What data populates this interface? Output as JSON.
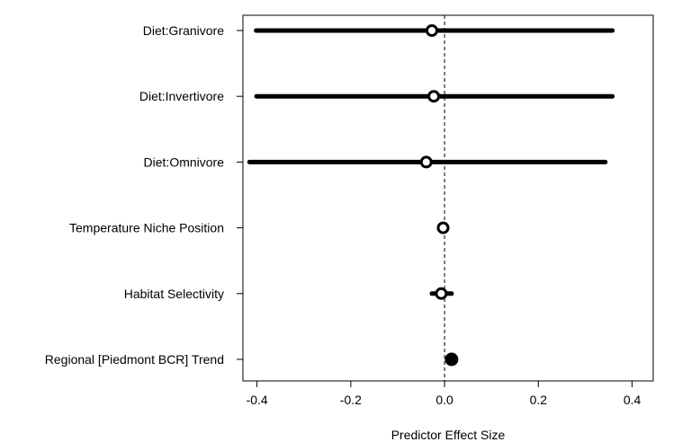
{
  "chart_data": {
    "type": "scatter",
    "subtype": "forest-plot",
    "title": "",
    "xlabel": "Predictor Effect Size",
    "ylabel": "",
    "xlim": [
      -0.43,
      0.445
    ],
    "xticks": [
      -0.4,
      -0.2,
      0.0,
      0.2,
      0.4
    ],
    "xtick_labels": [
      "-0.4",
      "-0.2",
      "0.0",
      "0.2",
      "0.4"
    ],
    "reference_line_x": 0,
    "grid": false,
    "legend": "none",
    "categories": [
      "Diet:Granivore",
      "Diet:Invertivore",
      "Diet:Omnivore",
      "Temperature Niche Position",
      "Habitat Selectivity",
      "Regional [Piedmont BCR] Trend"
    ],
    "estimates": [
      -0.027,
      -0.023,
      -0.039,
      -0.003,
      -0.007,
      0.015
    ],
    "ci_lower": [
      -0.402,
      -0.401,
      -0.416,
      -0.003,
      -0.027,
      0.015
    ],
    "ci_upper": [
      0.358,
      0.358,
      0.343,
      -0.003,
      0.015,
      0.015
    ],
    "marker_filled": [
      false,
      false,
      false,
      false,
      false,
      true
    ],
    "colors": {
      "marker": "#000000",
      "ci": "#000000",
      "frame": "#000000"
    }
  }
}
